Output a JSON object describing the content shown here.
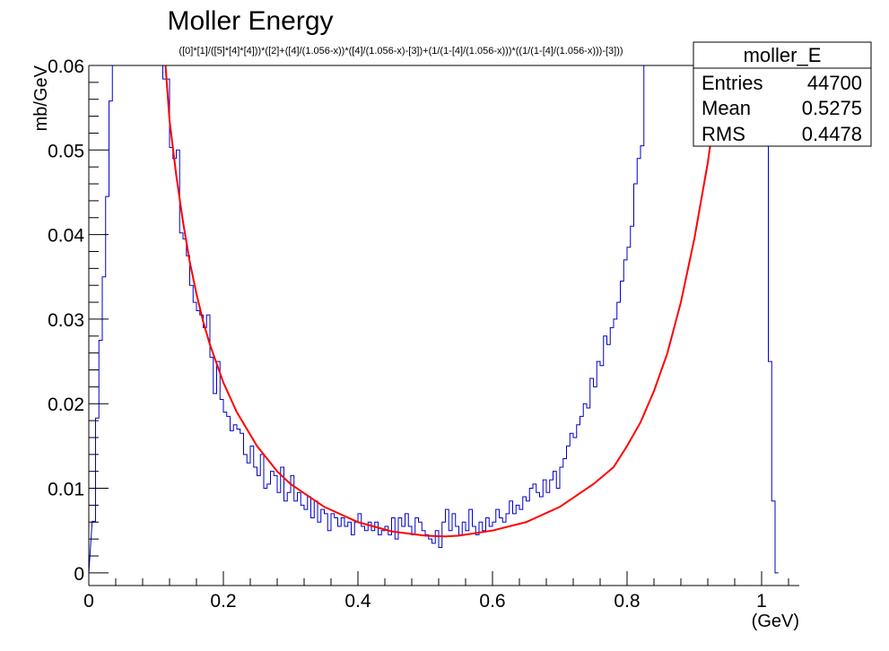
{
  "title": "Moller Energy",
  "subtitle": "([0]*[1]/([5]*[4]*[4]))*([2]+([4]/(1.056-x))*([4]/(1.056-x)-[3])+(1/(1-[4]/(1.056-x)))*((1/(1-[4]/(1.056-x)))-[3]))",
  "stats": {
    "name": "moller_E",
    "entries_label": "Entries",
    "entries_value": "44700",
    "mean_label": "Mean",
    "mean_value": "0.5275",
    "rms_label": "RMS",
    "rms_value": "0.4478"
  },
  "colors": {
    "histogram": "#0000cc",
    "fit": "#ff0000",
    "axis": "#000000"
  },
  "chart_data": {
    "type": "line",
    "xlabel": "(GeV)",
    "ylabel": "mb/GeV",
    "xlim": [
      0,
      1.056
    ],
    "ylim": [
      -0.0015,
      0.06
    ],
    "xticks": [
      0,
      0.2,
      0.4,
      0.6,
      0.8,
      1
    ],
    "xtick_labels": [
      "0",
      "0.2",
      "0.4",
      "0.6",
      "0.8",
      "1"
    ],
    "yticks": [
      0,
      0.01,
      0.02,
      0.03,
      0.04,
      0.05,
      0.06
    ],
    "ytick_labels": [
      "0",
      "0.01",
      "0.02",
      "0.03",
      "0.04",
      "0.05",
      "0.06"
    ],
    "grid": false,
    "series": [
      {
        "name": "moller_E",
        "style": "histogram",
        "bin_width": 0.005,
        "x_start": 0.005,
        "values": [
          0.0061,
          0.0183,
          0.0275,
          0.035,
          0.0445,
          0.0558,
          0.06,
          0.06,
          0.06,
          0.06,
          0.06,
          0.06,
          0.06,
          0.06,
          0.06,
          0.06,
          0.06,
          0.06,
          0.06,
          0.06,
          0.06,
          0.0584,
          0.0584,
          0.0503,
          0.049,
          0.05,
          0.0402,
          0.0395,
          0.0375,
          0.034,
          0.032,
          0.031,
          0.0305,
          0.029,
          0.0305,
          0.0255,
          0.0212,
          0.025,
          0.0205,
          0.019,
          0.0185,
          0.0168,
          0.0175,
          0.017,
          0.0165,
          0.014,
          0.013,
          0.015,
          0.0125,
          0.0115,
          0.014,
          0.01,
          0.0105,
          0.012,
          0.0115,
          0.0095,
          0.0125,
          0.0085,
          0.0095,
          0.0115,
          0.0085,
          0.0095,
          0.008,
          0.0075,
          0.009,
          0.0065,
          0.0085,
          0.006,
          0.0075,
          0.007,
          0.005,
          0.007,
          0.0065,
          0.0055,
          0.0065,
          0.0055,
          0.006,
          0.0045,
          0.006,
          0.007,
          0.0055,
          0.005,
          0.006,
          0.005,
          0.006,
          0.0045,
          0.005,
          0.0055,
          0.0045,
          0.0065,
          0.004,
          0.0065,
          0.0055,
          0.007,
          0.0055,
          0.0045,
          0.0065,
          0.006,
          0.005,
          0.0045,
          0.004,
          0.0035,
          0.005,
          0.003,
          0.006,
          0.0075,
          0.005,
          0.007,
          0.0055,
          0.0045,
          0.006,
          0.005,
          0.0075,
          0.0055,
          0.0045,
          0.006,
          0.005,
          0.0065,
          0.0055,
          0.006,
          0.0075,
          0.0065,
          0.006,
          0.007,
          0.0085,
          0.007,
          0.008,
          0.0075,
          0.009,
          0.0085,
          0.01,
          0.0105,
          0.0095,
          0.009,
          0.011,
          0.0095,
          0.011,
          0.012,
          0.01,
          0.0125,
          0.0135,
          0.015,
          0.0165,
          0.016,
          0.0175,
          0.0185,
          0.02,
          0.0195,
          0.023,
          0.022,
          0.025,
          0.0245,
          0.028,
          0.027,
          0.029,
          0.03,
          0.032,
          0.0345,
          0.037,
          0.0385,
          0.041,
          0.046,
          0.049,
          0.0505,
          0.06,
          0.06,
          0.06,
          0.06,
          0.06,
          0.06,
          0.06,
          0.06,
          0.06,
          0.06,
          0.06,
          0.06,
          0.06,
          0.06,
          0.06,
          0.06,
          0.06,
          0.06,
          0.06,
          0.06,
          0.06,
          0.06,
          0.06,
          0.06,
          0.06,
          0.06,
          0.06,
          0.06,
          0.06,
          0.06,
          0.06,
          0.06,
          0.06,
          0.06,
          0.06,
          0.06,
          0.06,
          0.025,
          0.0085,
          0.0
        ]
      },
      {
        "name": "fit",
        "style": "line",
        "x": [
          0.114,
          0.12,
          0.13,
          0.14,
          0.15,
          0.16,
          0.17,
          0.18,
          0.2,
          0.22,
          0.25,
          0.28,
          0.3,
          0.35,
          0.4,
          0.45,
          0.5,
          0.53,
          0.55,
          0.6,
          0.65,
          0.7,
          0.75,
          0.78,
          0.8,
          0.82,
          0.84,
          0.86,
          0.88,
          0.9,
          0.92,
          0.94
        ],
        "y": [
          0.06,
          0.0535,
          0.047,
          0.0415,
          0.0368,
          0.033,
          0.0297,
          0.027,
          0.0225,
          0.019,
          0.015,
          0.012,
          0.0105,
          0.0078,
          0.006,
          0.0049,
          0.0044,
          0.0043,
          0.0044,
          0.005,
          0.006,
          0.0078,
          0.0105,
          0.0125,
          0.015,
          0.0178,
          0.0215,
          0.026,
          0.032,
          0.0395,
          0.0485,
          0.06
        ]
      }
    ]
  }
}
